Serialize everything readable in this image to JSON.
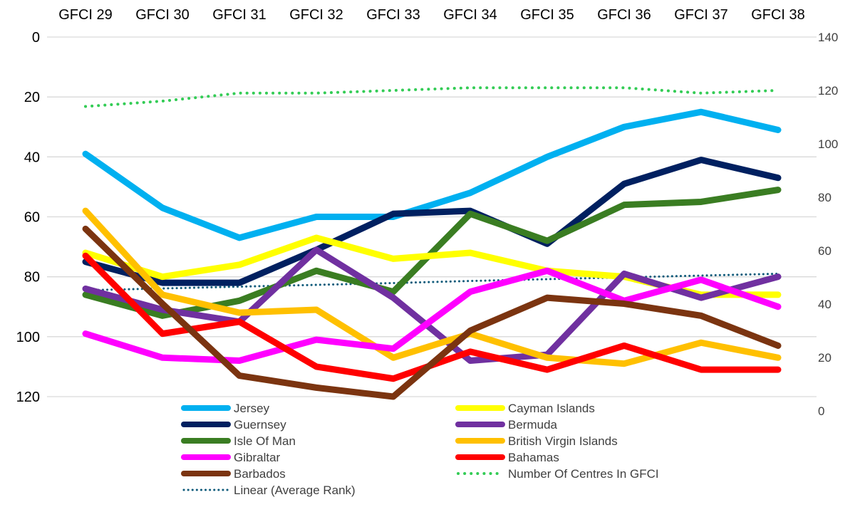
{
  "chart_data": {
    "type": "line",
    "categories": [
      "GFCI 29",
      "GFCI 30",
      "GFCI 31",
      "GFCI 32",
      "GFCI 33",
      "GFCI 34",
      "GFCI 35",
      "GFCI 36",
      "GFCI 37",
      "GFCI 38"
    ],
    "y_left": {
      "range": [
        0,
        120
      ],
      "reversed": true,
      "ticks": [
        0,
        20,
        40,
        60,
        80,
        100,
        120
      ]
    },
    "y_right": {
      "range": [
        0,
        140
      ],
      "ticks": [
        0,
        20,
        40,
        60,
        80,
        100,
        120,
        140
      ]
    },
    "grid": true,
    "legend_position": "bottom",
    "series": [
      {
        "name": "Jersey",
        "color": "#00B0F0",
        "axis": "left",
        "style": "solid",
        "values": [
          39,
          57,
          67,
          60,
          60,
          52,
          40,
          30,
          25,
          31
        ]
      },
      {
        "name": "Cayman Islands",
        "color": "#FFFF00",
        "axis": "left",
        "style": "solid",
        "values": [
          72,
          80,
          76,
          67,
          74,
          72,
          78,
          80,
          86,
          86
        ]
      },
      {
        "name": "Guernsey",
        "color": "#002060",
        "axis": "left",
        "style": "solid",
        "values": [
          75,
          82,
          82,
          71,
          59,
          58,
          69,
          49,
          41,
          47
        ]
      },
      {
        "name": "Bermuda",
        "color": "#7030A0",
        "axis": "left",
        "style": "solid",
        "values": [
          84,
          91,
          95,
          71,
          87,
          108,
          106,
          79,
          87,
          80
        ]
      },
      {
        "name": "Isle Of Man",
        "color": "#3A7D22",
        "axis": "left",
        "style": "solid",
        "values": [
          86,
          93,
          88,
          78,
          85,
          59,
          68,
          56,
          55,
          51
        ]
      },
      {
        "name": "British Virgin Islands",
        "color": "#FFC000",
        "axis": "left",
        "style": "solid",
        "values": [
          58,
          86,
          92,
          91,
          107,
          99,
          107,
          109,
          102,
          107
        ]
      },
      {
        "name": "Gibraltar",
        "color": "#FF00FF",
        "axis": "left",
        "style": "solid",
        "values": [
          99,
          107,
          108,
          101,
          104,
          85,
          78,
          88,
          81,
          90
        ]
      },
      {
        "name": "Bahamas",
        "color": "#FF0000",
        "axis": "left",
        "style": "solid",
        "values": [
          73,
          99,
          95,
          110,
          114,
          105,
          111,
          103,
          111,
          111
        ]
      },
      {
        "name": "Barbados",
        "color": "#7B3410",
        "axis": "left",
        "style": "solid",
        "values": [
          64,
          89,
          113,
          117,
          120,
          98,
          87,
          89,
          93,
          103
        ]
      },
      {
        "name": "Number Of Centres In GFCI",
        "color": "#33CC55",
        "axis": "right",
        "style": "dotted",
        "values": [
          114,
          116,
          119,
          119,
          120,
          121,
          121,
          121,
          119,
          120
        ]
      },
      {
        "name": "Linear (Average Rank)",
        "color": "#0E5A7A",
        "axis": "left",
        "style": "dotted-thin",
        "values": [
          84.5,
          83.9,
          83.3,
          82.7,
          82.1,
          81.4,
          80.8,
          80.2,
          79.6,
          79
        ]
      }
    ]
  }
}
